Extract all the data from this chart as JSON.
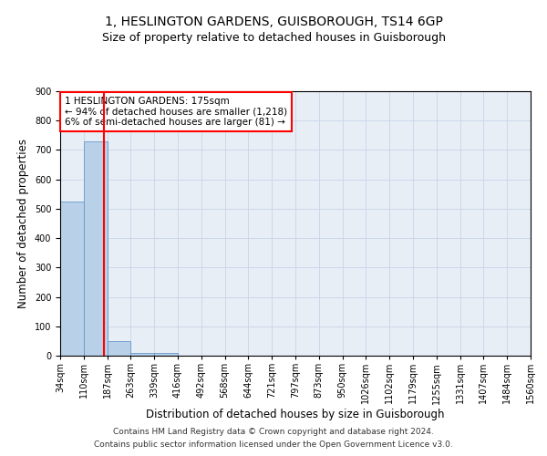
{
  "title1": "1, HESLINGTON GARDENS, GUISBOROUGH, TS14 6GP",
  "title2": "Size of property relative to detached houses in Guisborough",
  "xlabel": "Distribution of detached houses by size in Guisborough",
  "ylabel": "Number of detached properties",
  "bin_labels": [
    "34sqm",
    "110sqm",
    "187sqm",
    "263sqm",
    "339sqm",
    "416sqm",
    "492sqm",
    "568sqm",
    "644sqm",
    "721sqm",
    "797sqm",
    "873sqm",
    "950sqm",
    "1026sqm",
    "1102sqm",
    "1179sqm",
    "1255sqm",
    "1331sqm",
    "1407sqm",
    "1484sqm",
    "1560sqm"
  ],
  "bar_values": [
    525,
    728,
    50,
    10,
    10,
    0,
    0,
    0,
    0,
    0,
    0,
    0,
    0,
    0,
    0,
    0,
    0,
    0,
    0,
    0
  ],
  "bar_color": "#b8d0e8",
  "bar_edge_color": "#6699cc",
  "grid_color": "#ccd8ea",
  "annotation_text": "1 HESLINGTON GARDENS: 175sqm\n← 94% of detached houses are smaller (1,218)\n6% of semi-detached houses are larger (81) →",
  "annotation_box_color": "white",
  "annotation_box_edge_color": "red",
  "vline_color": "red",
  "ylim": [
    0,
    900
  ],
  "yticks": [
    0,
    100,
    200,
    300,
    400,
    500,
    600,
    700,
    800,
    900
  ],
  "footer1": "Contains HM Land Registry data © Crown copyright and database right 2024.",
  "footer2": "Contains public sector information licensed under the Open Government Licence v3.0.",
  "title1_fontsize": 10,
  "title2_fontsize": 9,
  "xlabel_fontsize": 8.5,
  "ylabel_fontsize": 8.5,
  "tick_fontsize": 7,
  "annotation_fontsize": 7.5,
  "footer_fontsize": 6.5,
  "bg_color": "#e8eef5"
}
